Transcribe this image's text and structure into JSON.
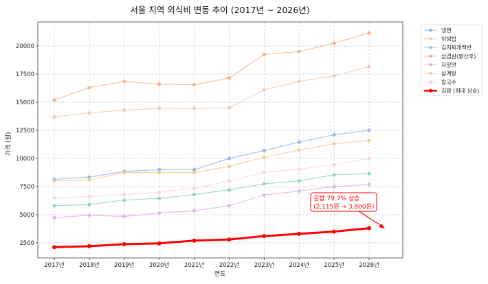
{
  "chart_data": {
    "type": "line",
    "title": "서울 지역 외식비 변동 추이 (2017년 ~ 2026년)",
    "xlabel": "연도",
    "ylabel": "가격 (원)",
    "categories": [
      "2017년",
      "2018년",
      "2019년",
      "2020년",
      "2021년",
      "2022년",
      "2023년",
      "2024년",
      "2025년",
      "2026년"
    ],
    "yticks": [
      2500,
      5000,
      7500,
      10000,
      12500,
      15000,
      17500,
      20000
    ],
    "ylim": [
      1200,
      22100
    ],
    "grid": true,
    "legend_position": "outside upper right",
    "series": [
      {
        "name": "냉면",
        "color": "#a9c1ea",
        "marker": "#8fb0e6",
        "width": 1.2,
        "values": [
          8150,
          8350,
          8850,
          9000,
          9000,
          10000,
          10700,
          11450,
          12100,
          12500
        ]
      },
      {
        "name": "비빔밥",
        "color": "#f5d6a4",
        "marker": "#f0c98c",
        "width": 1.2,
        "values": [
          8000,
          8100,
          8750,
          8750,
          8750,
          9300,
          10100,
          10750,
          11300,
          11600
        ]
      },
      {
        "name": "김치찌개백반",
        "color": "#9fdcc2",
        "marker": "#86d2b2",
        "width": 1.2,
        "values": [
          5800,
          5900,
          6300,
          6450,
          6800,
          7200,
          7750,
          8000,
          8550,
          8650
        ]
      },
      {
        "name": "삼겹살(환산후)",
        "color": "#f3c09c",
        "marker": "#eeac80",
        "width": 1.2,
        "values": [
          15200,
          16300,
          16850,
          16600,
          16550,
          17150,
          19250,
          19500,
          20250,
          21150
        ]
      },
      {
        "name": "자장면",
        "color": "#e3bfe3",
        "marker": "#dbaedb",
        "width": 1.2,
        "values": [
          4750,
          4950,
          4850,
          5150,
          5350,
          5800,
          6750,
          7100,
          7500,
          7700
        ]
      },
      {
        "name": "삼계탕",
        "color": "#efd6c2",
        "marker": "#e9c8b0",
        "width": 1.2,
        "values": [
          13700,
          14050,
          14300,
          14450,
          14450,
          14500,
          16100,
          16850,
          17350,
          18150
        ]
      },
      {
        "name": "칼국수",
        "color": "#fcdcef",
        "marker": "#f9cde8",
        "width": 1.2,
        "values": [
          6500,
          6600,
          6800,
          7000,
          7350,
          8000,
          8750,
          9050,
          9450,
          10000
        ]
      },
      {
        "name": "김밥 (최대 상승)",
        "color": "#ff0000",
        "marker": "#ff0000",
        "width": 3,
        "values": [
          2115,
          2200,
          2380,
          2450,
          2700,
          2800,
          3100,
          3300,
          3500,
          3800
        ]
      }
    ],
    "annotation": {
      "line1": "김밥 79.7% 상승",
      "line2": "(2,115원 → 3,800원)",
      "color": "#ff0000",
      "target_category": "2026년",
      "target_value": 3800
    }
  }
}
